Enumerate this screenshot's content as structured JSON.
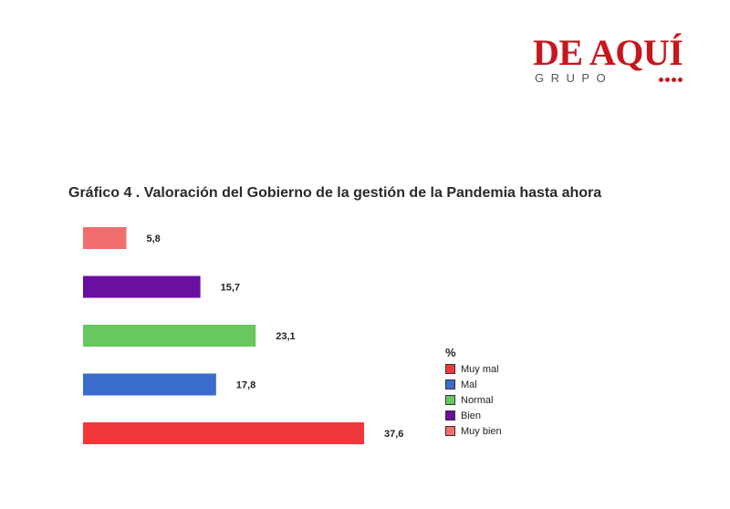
{
  "logo": {
    "main": "DE AQUÍ",
    "sub": "GRUPO",
    "color": "#c8161d"
  },
  "chart_data": {
    "type": "bar",
    "orientation": "horizontal",
    "title": "Gráfico 4 . Valoración del Gobierno de la gestión de la Pandemia hasta ahora",
    "categories": [
      "Muy bien",
      "Bien",
      "Normal",
      "Mal",
      "Muy mal"
    ],
    "values": [
      5.8,
      15.7,
      23.1,
      17.8,
      37.6
    ],
    "value_labels": [
      "5,8",
      "15,7",
      "23,1",
      "17,8",
      "37,6"
    ],
    "colors": [
      "#f26d6d",
      "#6a0fa0",
      "#66c85e",
      "#3a6ccc",
      "#f2373a"
    ],
    "xlim": [
      0,
      37.6
    ],
    "grid": false,
    "legend": {
      "title": "%",
      "placement": "right",
      "items": [
        {
          "label": "Muy mal",
          "color": "#f2373a"
        },
        {
          "label": "Mal",
          "color": "#3a6ccc"
        },
        {
          "label": "Normal",
          "color": "#66c85e"
        },
        {
          "label": "Bien",
          "color": "#6a0fa0"
        },
        {
          "label": "Muy bien",
          "color": "#f26d6d"
        }
      ]
    }
  }
}
